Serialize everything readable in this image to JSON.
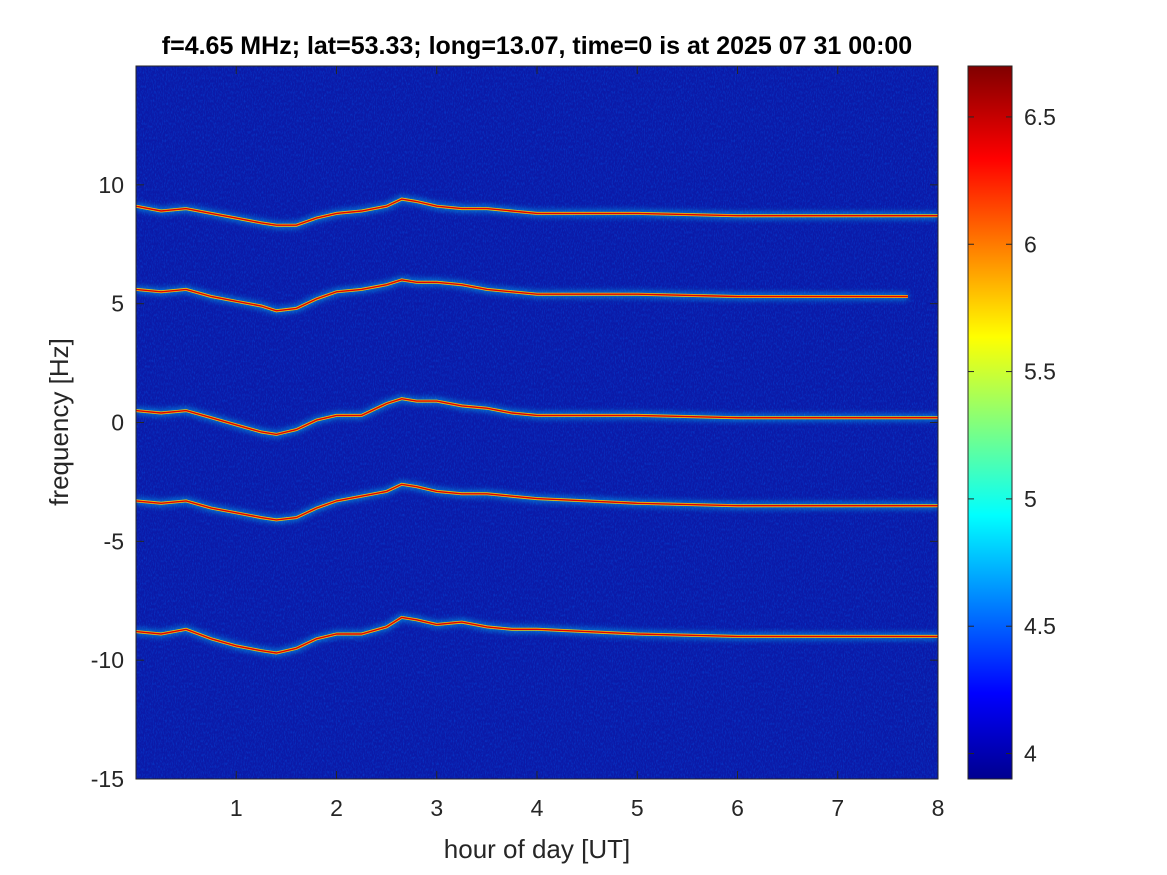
{
  "chart_data": {
    "type": "heatmap",
    "title": "f=4.65 MHz;  lat=53.33; long=13.07, time=0 is at 2025 07 31 00:00",
    "xlabel": "hour of day [UT]",
    "ylabel": "frequency [Hz]",
    "xlim": [
      0,
      8
    ],
    "ylim": [
      -15,
      15
    ],
    "xticks": [
      1,
      2,
      3,
      4,
      5,
      6,
      7,
      8
    ],
    "xtick_labels": [
      "1",
      "2",
      "3",
      "4",
      "5",
      "6",
      "7",
      "8"
    ],
    "yticks": [
      -15,
      -10,
      -5,
      0,
      5,
      10
    ],
    "ytick_labels": [
      "-15",
      "-10",
      "-5",
      "0",
      "5",
      "10"
    ],
    "colorbar": {
      "colormap": "jet",
      "range": [
        3.9,
        6.7
      ],
      "ticks": [
        4,
        4.5,
        5,
        5.5,
        6,
        6.5
      ],
      "tick_labels": [
        "4",
        "4.5",
        "5",
        "5.5",
        "6",
        "6.5"
      ]
    },
    "series": [
      {
        "x": [
          0,
          0.25,
          0.5,
          0.75,
          1.0,
          1.25,
          1.4,
          1.6,
          1.8,
          2.0,
          2.25,
          2.5,
          2.65,
          2.8,
          3.0,
          3.25,
          3.5,
          3.75,
          4.0,
          4.5,
          5.0,
          6.0,
          7.0,
          8.0
        ],
        "y": [
          9.1,
          8.9,
          9.0,
          8.8,
          8.6,
          8.4,
          8.3,
          8.3,
          8.6,
          8.8,
          8.9,
          9.1,
          9.4,
          9.3,
          9.1,
          9.0,
          9.0,
          8.9,
          8.8,
          8.8,
          8.8,
          8.7,
          8.7,
          8.7
        ]
      },
      {
        "x": [
          0,
          0.25,
          0.5,
          0.75,
          1.0,
          1.25,
          1.4,
          1.6,
          1.8,
          2.0,
          2.25,
          2.5,
          2.65,
          2.8,
          3.0,
          3.25,
          3.5,
          3.75,
          4.0,
          4.5,
          5.0,
          6.0,
          7.0,
          7.7
        ],
        "y": [
          5.6,
          5.5,
          5.6,
          5.3,
          5.1,
          4.9,
          4.7,
          4.8,
          5.2,
          5.5,
          5.6,
          5.8,
          6.0,
          5.9,
          5.9,
          5.8,
          5.6,
          5.5,
          5.4,
          5.4,
          5.4,
          5.3,
          5.3,
          5.3
        ]
      },
      {
        "x": [
          0,
          0.25,
          0.5,
          0.75,
          1.0,
          1.25,
          1.4,
          1.6,
          1.8,
          2.0,
          2.25,
          2.5,
          2.65,
          2.8,
          3.0,
          3.25,
          3.5,
          3.75,
          4.0,
          4.5,
          5.0,
          6.0,
          7.0,
          8.0
        ],
        "y": [
          0.5,
          0.4,
          0.5,
          0.2,
          -0.1,
          -0.4,
          -0.5,
          -0.3,
          0.1,
          0.3,
          0.3,
          0.8,
          1.0,
          0.9,
          0.9,
          0.7,
          0.6,
          0.4,
          0.3,
          0.3,
          0.3,
          0.2,
          0.2,
          0.2
        ]
      },
      {
        "x": [
          0,
          0.25,
          0.5,
          0.75,
          1.0,
          1.25,
          1.4,
          1.6,
          1.8,
          2.0,
          2.25,
          2.5,
          2.65,
          2.8,
          3.0,
          3.25,
          3.5,
          3.75,
          4.0,
          4.5,
          5.0,
          6.0,
          7.0,
          8.0
        ],
        "y": [
          -3.3,
          -3.4,
          -3.3,
          -3.6,
          -3.8,
          -4.0,
          -4.1,
          -4.0,
          -3.6,
          -3.3,
          -3.1,
          -2.9,
          -2.6,
          -2.7,
          -2.9,
          -3.0,
          -3.0,
          -3.1,
          -3.2,
          -3.3,
          -3.4,
          -3.5,
          -3.5,
          -3.5
        ]
      },
      {
        "x": [
          0,
          0.25,
          0.5,
          0.75,
          1.0,
          1.25,
          1.4,
          1.6,
          1.8,
          2.0,
          2.25,
          2.5,
          2.65,
          2.8,
          3.0,
          3.25,
          3.5,
          3.75,
          4.0,
          4.5,
          5.0,
          6.0,
          7.0,
          8.0
        ],
        "y": [
          -8.8,
          -8.9,
          -8.7,
          -9.1,
          -9.4,
          -9.6,
          -9.7,
          -9.5,
          -9.1,
          -8.9,
          -8.9,
          -8.6,
          -8.2,
          -8.3,
          -8.5,
          -8.4,
          -8.6,
          -8.7,
          -8.7,
          -8.8,
          -8.9,
          -9.0,
          -9.0,
          -9.0
        ]
      }
    ]
  }
}
